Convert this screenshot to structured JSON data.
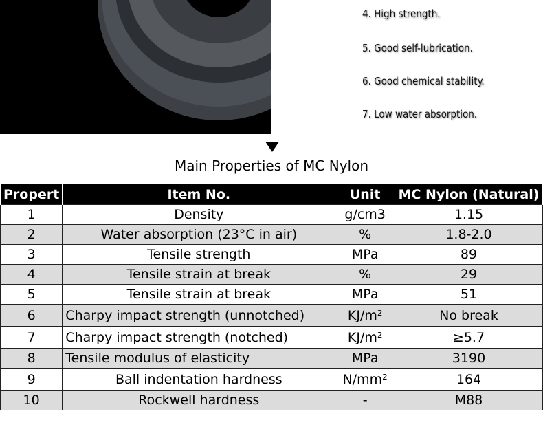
{
  "features": [
    "4. High strength.",
    "5. Good self-lubrication.",
    "6. Good chemical stability.",
    "7. Low water absorption."
  ],
  "section_title": "Main Properties of MC Nylon",
  "table": {
    "header": [
      "Propert",
      "Item No.",
      "Unit",
      "MC Nylon (Natural)"
    ],
    "rows": [
      [
        "1",
        "Density",
        "g/cm3",
        "1.15"
      ],
      [
        "2",
        "Water absorption (23°C in air)",
        "%",
        "1.8-2.0"
      ],
      [
        "3",
        "Tensile strength",
        "MPa",
        "89"
      ],
      [
        "4",
        "Tensile strain at break",
        "%",
        "29"
      ],
      [
        "5",
        "Tensile strain at break",
        "MPa",
        "51"
      ],
      [
        "6",
        "Charpy impact strength (unnotched)",
        "KJ/m²",
        "No break"
      ],
      [
        "7",
        "Charpy impact strength (notched)",
        "KJ/m²",
        "≥5.7"
      ],
      [
        "8",
        "Tensile modulus of elasticity",
        "MPa",
        "3190"
      ],
      [
        "9",
        "Ball indentation hardness",
        "N/mm²",
        "164"
      ],
      [
        "10",
        "Rockwell hardness",
        "-",
        "M88"
      ]
    ]
  }
}
